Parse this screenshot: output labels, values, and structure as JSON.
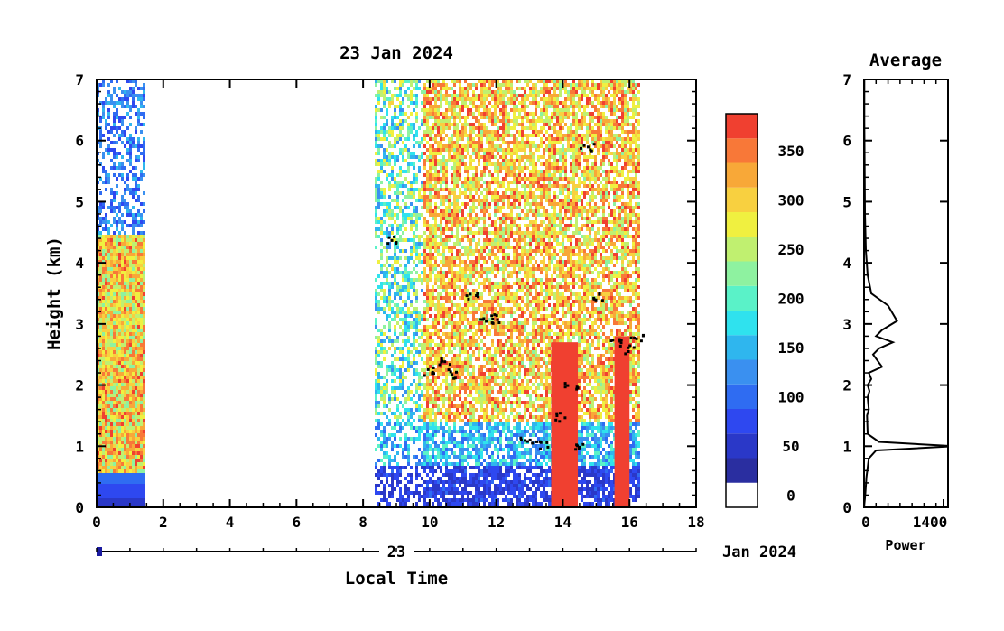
{
  "chart_data": [
    {
      "type": "heatmap",
      "title": "23 Jan 2024",
      "xlabel": "Local Time",
      "ylabel": "Height (km)",
      "xlim": [
        0,
        18
      ],
      "ylim": [
        0,
        7
      ],
      "x_ticks": [
        "0",
        "2",
        "4",
        "6",
        "8",
        "10",
        "12",
        "14",
        "16",
        "18"
      ],
      "y_ticks": [
        "0",
        "1",
        "2",
        "3",
        "4",
        "5",
        "6",
        "7"
      ],
      "date_axis": {
        "day_label": "23",
        "month_label": "Jan 2024"
      },
      "colorbar": {
        "levels": [
          0,
          25,
          50,
          75,
          100,
          125,
          150,
          175,
          200,
          225,
          250,
          275,
          300,
          325,
          350,
          375
        ],
        "tick_labels": [
          "0",
          "50",
          "100",
          "150",
          "200",
          "250",
          "300",
          "350"
        ],
        "colors": [
          "#ffffff",
          "#2a2ea0",
          "#2a38c8",
          "#2e48f0",
          "#2f6cf2",
          "#3a90f0",
          "#2fb6ee",
          "#2fe2ee",
          "#5af2c8",
          "#8ef2a0",
          "#c0f070",
          "#f0f040",
          "#f8d040",
          "#f8a838",
          "#f87838",
          "#f04030"
        ]
      },
      "data_segments": [
        {
          "start": 0.0,
          "end": 1.45,
          "top_km": 7.0
        },
        {
          "start": 8.35,
          "end": 16.3,
          "top_km": 7.0
        }
      ],
      "strong_echo_columns": [
        {
          "start": 13.65,
          "end": 14.45,
          "top_km": 2.7
        },
        {
          "start": 15.55,
          "end": 16.0,
          "top_km": 2.8
        }
      ],
      "cloud_layer_points": [
        {
          "x": 8.75,
          "y": 4.4
        },
        {
          "x": 9.9,
          "y": 2.25
        },
        {
          "x": 10.4,
          "y": 2.4
        },
        {
          "x": 10.7,
          "y": 2.2
        },
        {
          "x": 11.2,
          "y": 3.45
        },
        {
          "x": 11.7,
          "y": 3.05
        },
        {
          "x": 12.0,
          "y": 3.1
        },
        {
          "x": 12.9,
          "y": 1.1
        },
        {
          "x": 13.3,
          "y": 1.05
        },
        {
          "x": 13.9,
          "y": 1.5
        },
        {
          "x": 14.2,
          "y": 2.0
        },
        {
          "x": 14.35,
          "y": 1.0
        },
        {
          "x": 14.7,
          "y": 5.9
        },
        {
          "x": 15.0,
          "y": 3.45
        },
        {
          "x": 15.5,
          "y": 2.7
        },
        {
          "x": 15.9,
          "y": 2.6
        },
        {
          "x": 16.2,
          "y": 2.8
        }
      ]
    },
    {
      "type": "line",
      "title": "Average",
      "xlabel": "Power",
      "xlim": [
        0,
        1400
      ],
      "ylim": [
        0,
        7
      ],
      "x_ticks": [
        "0",
        "1400"
      ],
      "y_ticks": [
        "0",
        "1",
        "2",
        "3",
        "4",
        "5",
        "6",
        "7"
      ],
      "x": [
        0,
        20,
        40,
        80,
        200,
        1500,
        250,
        60,
        50,
        80,
        60,
        90,
        60,
        120,
        80,
        300,
        150,
        250,
        480,
        200,
        300,
        550,
        400,
        120,
        60,
        30,
        15,
        10,
        5,
        5
      ],
      "y": [
        0.0,
        0.2,
        0.5,
        0.8,
        0.93,
        1.0,
        1.07,
        1.2,
        1.5,
        1.6,
        1.8,
        1.9,
        2.0,
        2.1,
        2.2,
        2.3,
        2.5,
        2.6,
        2.7,
        2.8,
        2.9,
        3.05,
        3.3,
        3.5,
        3.8,
        4.2,
        4.8,
        5.5,
        6.3,
        7.0
      ]
    }
  ]
}
